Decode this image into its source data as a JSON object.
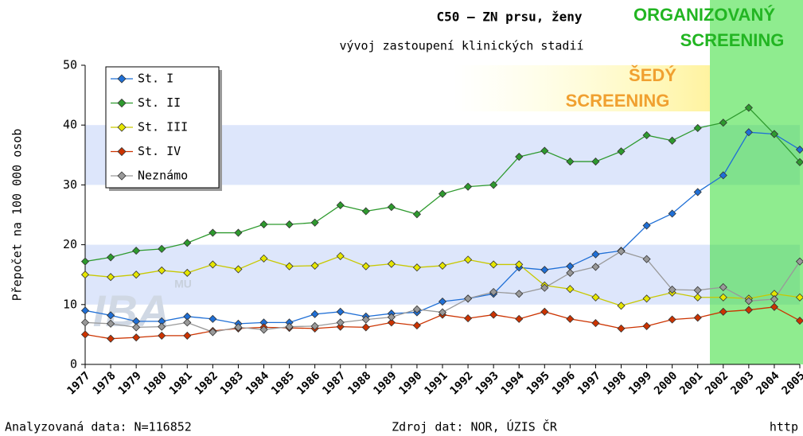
{
  "chart_data": {
    "type": "line",
    "title": "C50 – ZN prsu, ženy",
    "subtitle": "vývoj zastoupení klinických stadií",
    "y_label": "Přepočet na 100 000 osob",
    "categories": [
      "1977",
      "1978",
      "1979",
      "1980",
      "1981",
      "1982",
      "1983",
      "1984",
      "1985",
      "1986",
      "1987",
      "1988",
      "1989",
      "1990",
      "1991",
      "1992",
      "1993",
      "1994",
      "1995",
      "1996",
      "1997",
      "1998",
      "1999",
      "2000",
      "2001",
      "2002",
      "2003",
      "2004",
      "2005"
    ],
    "series": [
      {
        "name": "St. I",
        "color": "#1f6fd6",
        "values": [
          9.0,
          8.2,
          7.2,
          7.2,
          8.0,
          7.6,
          6.8,
          7.0,
          7.0,
          8.4,
          8.8,
          8.0,
          8.5,
          8.7,
          10.5,
          11.0,
          11.8,
          16.2,
          15.8,
          16.4,
          18.4,
          19.0,
          23.2,
          25.2,
          28.8,
          31.6,
          38.8,
          38.5,
          35.9
        ]
      },
      {
        "name": "St. II",
        "color": "#2e9a2e",
        "values": [
          17.2,
          17.9,
          19.0,
          19.3,
          20.3,
          22.0,
          22.0,
          23.4,
          23.4,
          23.7,
          26.6,
          25.6,
          26.3,
          25.1,
          28.5,
          29.7,
          30.0,
          34.7,
          35.7,
          33.9,
          33.9,
          35.6,
          38.3,
          37.4,
          39.5,
          40.4,
          42.9,
          38.5,
          33.8
        ]
      },
      {
        "name": "St. III",
        "color": "#e6e600",
        "values": [
          15.0,
          14.6,
          15.0,
          15.7,
          15.3,
          16.7,
          15.9,
          17.7,
          16.4,
          16.5,
          18.1,
          16.4,
          16.8,
          16.2,
          16.5,
          17.5,
          16.7,
          16.7,
          13.2,
          12.6,
          11.2,
          9.8,
          11.0,
          12.0,
          11.2,
          11.2,
          11.0,
          11.8,
          11.2
        ]
      },
      {
        "name": "St. IV",
        "color": "#cc3300",
        "values": [
          5.0,
          4.3,
          4.5,
          4.8,
          4.8,
          5.6,
          6.0,
          6.2,
          6.1,
          6.0,
          6.3,
          6.2,
          7.0,
          6.5,
          8.3,
          7.7,
          8.3,
          7.6,
          8.8,
          7.6,
          6.9,
          6.0,
          6.4,
          7.5,
          7.8,
          8.8,
          9.1,
          9.6,
          7.3
        ]
      },
      {
        "name": "Neznámo",
        "color": "#999999",
        "values": [
          7.0,
          6.8,
          6.2,
          6.3,
          7.0,
          5.4,
          6.2,
          5.8,
          6.3,
          6.4,
          7.0,
          7.5,
          7.9,
          9.2,
          8.7,
          11.0,
          12.1,
          11.8,
          12.8,
          15.3,
          16.3,
          18.9,
          17.6,
          12.5,
          12.4,
          12.9,
          10.6,
          10.9,
          17.2
        ]
      }
    ],
    "ylim": [
      0,
      50
    ],
    "yticks": [
      0,
      10,
      20,
      30,
      40,
      50
    ],
    "legend": "upper-left",
    "annotations": [
      [
        "ORGANIZOVANÝ",
        "SCREENING"
      ],
      [
        "ŠEDÝ",
        "SCREENING"
      ]
    ],
    "watermark": [
      "MU",
      "IBA"
    ],
    "footer": [
      "Analyzovaná data: N=116852",
      "Zdroj dat: NOR, ÚZIS ČR",
      "http"
    ]
  }
}
